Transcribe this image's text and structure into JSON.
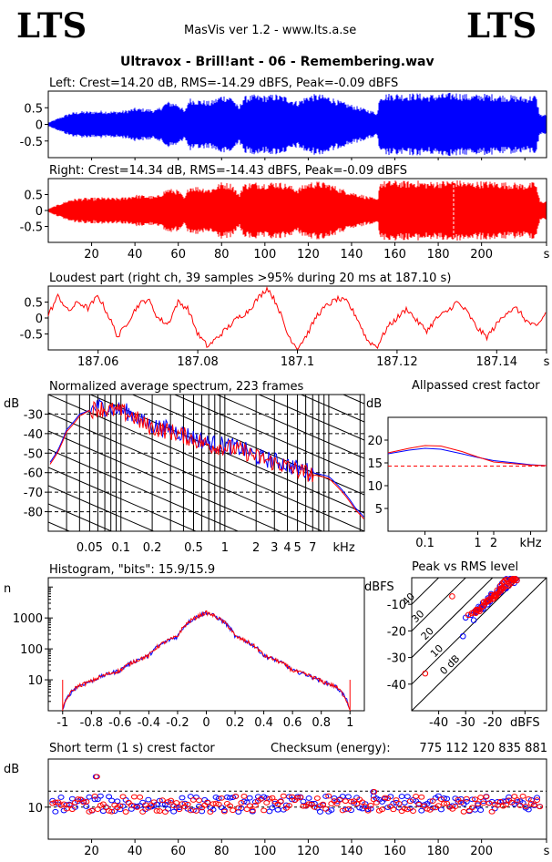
{
  "header": {
    "logo_left": "LTS",
    "logo_right": "LTS",
    "app_title": "MasVis ver 1.2 - www.lts.a.se",
    "file_title": "Ultravox - Brill!ant - 06 - Remembering.wav"
  },
  "colors": {
    "left": "#0000ff",
    "right": "#ff0000",
    "grid": "#000000"
  },
  "chart_data": [
    {
      "type": "area",
      "id": "left_waveform",
      "title": "Left: Crest=14.20 dB, RMS=-14.29 dBFS, Peak=-0.09 dBFS",
      "color": "#0000ff",
      "yticks": [
        "0.5",
        "0",
        "-0.5"
      ],
      "ytick_values": [
        0.5,
        0,
        -0.5
      ],
      "ylim": [
        -1,
        1
      ],
      "xlim": [
        0,
        230
      ],
      "envelope_t": [
        0,
        5,
        10,
        15,
        20,
        25,
        30,
        35,
        40,
        45,
        50,
        55,
        60,
        63,
        65,
        70,
        75,
        80,
        85,
        88,
        90,
        95,
        100,
        105,
        110,
        115,
        120,
        125,
        130,
        135,
        140,
        145,
        150,
        152,
        153,
        160,
        165,
        170,
        175,
        180,
        185,
        187,
        190,
        195,
        200,
        205,
        210,
        215,
        220,
        225,
        227
      ],
      "envelope_a": [
        0.05,
        0.2,
        0.35,
        0.4,
        0.4,
        0.42,
        0.4,
        0.42,
        0.5,
        0.48,
        0.45,
        0.7,
        0.65,
        0.4,
        0.8,
        0.75,
        0.7,
        0.9,
        0.85,
        0.5,
        0.85,
        0.9,
        0.88,
        0.92,
        0.85,
        0.7,
        0.9,
        0.92,
        0.85,
        0.7,
        0.6,
        0.5,
        0.4,
        0.35,
        0.92,
        0.95,
        0.93,
        0.95,
        0.9,
        0.93,
        0.95,
        0.98,
        0.95,
        0.9,
        0.93,
        0.92,
        0.9,
        0.88,
        0.85,
        0.9,
        0.3
      ]
    },
    {
      "type": "area",
      "id": "right_waveform",
      "title": "Right: Crest=14.34 dB, RMS=-14.43 dBFS, Peak=-0.09 dBFS",
      "color": "#ff0000",
      "yticks": [
        "0.5",
        "0",
        "-0.5"
      ],
      "ytick_values": [
        0.5,
        0,
        -0.5
      ],
      "ylim": [
        -1,
        1
      ],
      "xlim": [
        0,
        230
      ],
      "xticks": [
        "20",
        "40",
        "60",
        "80",
        "100",
        "120",
        "140",
        "160",
        "180",
        "200",
        "s"
      ],
      "xtick_values": [
        20,
        40,
        60,
        80,
        100,
        120,
        140,
        160,
        180,
        200,
        230
      ],
      "envelope_t": [
        0,
        5,
        10,
        15,
        20,
        25,
        30,
        35,
        40,
        45,
        50,
        55,
        60,
        63,
        65,
        70,
        75,
        80,
        85,
        88,
        90,
        95,
        100,
        105,
        110,
        115,
        120,
        125,
        130,
        135,
        140,
        145,
        150,
        152,
        153,
        160,
        165,
        170,
        175,
        180,
        185,
        187,
        190,
        195,
        200,
        205,
        210,
        215,
        220,
        225,
        227
      ],
      "envelope_a": [
        0.05,
        0.2,
        0.35,
        0.4,
        0.4,
        0.42,
        0.4,
        0.42,
        0.5,
        0.48,
        0.45,
        0.7,
        0.65,
        0.4,
        0.8,
        0.75,
        0.7,
        0.9,
        0.85,
        0.5,
        0.85,
        0.9,
        0.88,
        0.92,
        0.85,
        0.7,
        0.9,
        0.92,
        0.85,
        0.7,
        0.6,
        0.5,
        0.4,
        0.35,
        0.92,
        0.95,
        0.93,
        0.95,
        0.9,
        0.93,
        0.95,
        0.98,
        0.95,
        0.9,
        0.93,
        0.92,
        0.9,
        0.88,
        0.85,
        0.9,
        0.3
      ],
      "marker_time": 187.1
    },
    {
      "type": "line",
      "id": "loudest_part",
      "title": "Loudest part (right ch, 39 samples >95% during 20 ms at 187.10 s)",
      "color": "#ff0000",
      "xlim": [
        187.05,
        187.15
      ],
      "ylim": [
        -1,
        1
      ],
      "yticks": [
        "0.5",
        "0",
        "-0.5"
      ],
      "ytick_values": [
        0.5,
        0,
        -0.5
      ],
      "xticks": [
        "187.06",
        "187.08",
        "187.1",
        "187.12",
        "187.14",
        "s"
      ],
      "xtick_values": [
        187.06,
        187.08,
        187.1,
        187.12,
        187.14,
        187.15
      ],
      "x": [
        187.05,
        187.052,
        187.054,
        187.056,
        187.058,
        187.06,
        187.062,
        187.064,
        187.066,
        187.068,
        187.07,
        187.072,
        187.074,
        187.076,
        187.078,
        187.08,
        187.082,
        187.084,
        187.086,
        187.088,
        187.09,
        187.092,
        187.094,
        187.096,
        187.098,
        187.1,
        187.102,
        187.104,
        187.106,
        187.108,
        187.11,
        187.112,
        187.114,
        187.116,
        187.118,
        187.12,
        187.122,
        187.124,
        187.126,
        187.128,
        187.13,
        187.132,
        187.134,
        187.136,
        187.138,
        187.14,
        187.142,
        187.144,
        187.146,
        187.148,
        187.15
      ],
      "y": [
        0.1,
        0.7,
        0.2,
        0.5,
        0.3,
        0.7,
        0.1,
        -0.6,
        -0.1,
        0.4,
        0.6,
        0.0,
        -0.2,
        0.5,
        0.3,
        -0.5,
        -0.9,
        -0.6,
        -0.3,
        0.0,
        0.2,
        0.6,
        0.95,
        0.4,
        -0.5,
        -0.95,
        -0.5,
        0.1,
        0.4,
        0.6,
        0.5,
        0.0,
        -0.7,
        -0.9,
        -0.3,
        0.0,
        0.3,
        -0.1,
        -0.4,
        0.0,
        0.2,
        0.5,
        0.2,
        -0.3,
        -0.6,
        -0.2,
        0.2,
        0.3,
        -0.1,
        -0.3,
        0.2
      ]
    },
    {
      "type": "line",
      "id": "avg_spectrum",
      "title": "Normalized average spectrum, 223 frames",
      "ylabel": "dB",
      "xlabel": "kHz",
      "xscale": "log",
      "xlim": [
        0.02,
        22
      ],
      "ylim": [
        -90,
        -20
      ],
      "yticks": [
        "-30",
        "-40",
        "-50",
        "-60",
        "-70",
        "-80"
      ],
      "ytick_values": [
        -30,
        -40,
        -50,
        -60,
        -70,
        -80
      ],
      "xticks": [
        "0.05",
        "0.1",
        "0.2",
        "0.5",
        "1",
        "2",
        "3",
        "4",
        "5",
        "7",
        "kHz"
      ],
      "xtick_values": [
        0.05,
        0.1,
        0.2,
        0.5,
        1,
        2,
        3,
        4,
        5,
        7,
        14
      ],
      "series": [
        {
          "color": "#0000ff",
          "x": [
            0.02,
            0.025,
            0.03,
            0.04,
            0.05,
            0.06,
            0.08,
            0.1,
            0.13,
            0.16,
            0.2,
            0.3,
            0.4,
            0.5,
            0.7,
            1,
            1.5,
            2,
            3,
            4,
            5,
            7,
            10,
            14,
            18,
            22
          ],
          "y": [
            -56,
            -48,
            -38,
            -30,
            -28,
            -26,
            -27,
            -28,
            -30,
            -34,
            -36,
            -38,
            -40,
            -42,
            -45,
            -46,
            -48,
            -52,
            -54,
            -56,
            -58,
            -60,
            -62,
            -70,
            -78,
            -83
          ]
        },
        {
          "color": "#ff0000",
          "x": [
            0.02,
            0.025,
            0.03,
            0.04,
            0.05,
            0.06,
            0.08,
            0.1,
            0.13,
            0.16,
            0.2,
            0.3,
            0.4,
            0.5,
            0.7,
            1,
            1.5,
            2,
            3,
            4,
            5,
            7,
            10,
            14,
            18,
            22
          ],
          "y": [
            -57,
            -49,
            -39,
            -31,
            -28,
            -27,
            -28,
            -29,
            -31,
            -35,
            -37,
            -39,
            -41,
            -43,
            -46,
            -47,
            -49,
            -52,
            -55,
            -57,
            -59,
            -61,
            -63,
            -71,
            -79,
            -84
          ]
        }
      ]
    },
    {
      "type": "line",
      "id": "allpassed_crest",
      "title": "Allpassed crest factor",
      "ylabel": "dB",
      "xlabel": "kHz",
      "xscale": "log",
      "xlim": [
        0.02,
        20
      ],
      "ylim": [
        0,
        25
      ],
      "yticks": [
        "20",
        "15",
        "10",
        "5"
      ],
      "ytick_values": [
        20,
        15,
        10,
        5
      ],
      "xticks": [
        "0.1",
        "1",
        "2",
        "kHz"
      ],
      "xtick_values": [
        0.1,
        1,
        2,
        10
      ],
      "reference_line": 14.3,
      "series": [
        {
          "color": "#0000ff",
          "x": [
            0.02,
            0.05,
            0.1,
            0.2,
            0.5,
            1,
            2,
            5,
            10,
            20
          ],
          "y": [
            17.0,
            17.8,
            18.2,
            18.0,
            17.0,
            16.2,
            15.5,
            15.0,
            14.6,
            14.4
          ]
        },
        {
          "color": "#ff0000",
          "x": [
            0.02,
            0.05,
            0.1,
            0.2,
            0.5,
            1,
            2,
            5,
            10,
            20
          ],
          "y": [
            17.2,
            18.2,
            18.8,
            18.7,
            17.5,
            16.3,
            15.2,
            14.8,
            14.5,
            14.4
          ]
        }
      ]
    },
    {
      "type": "line",
      "id": "histogram",
      "title": "Histogram, \"bits\": 15.9/15.9",
      "ylabel": "n",
      "yscale": "log",
      "xlim": [
        -1.1,
        1.1
      ],
      "ylim": [
        1,
        20000
      ],
      "yticks": [
        "1000",
        "100",
        "10"
      ],
      "ytick_values": [
        1000,
        100,
        10
      ],
      "xticks": [
        "-1",
        "-0.8",
        "-0.6",
        "-0.4",
        "-0.2",
        "0",
        "0.2",
        "0.4",
        "0.6",
        "0.8",
        "1"
      ],
      "xtick_values": [
        -1,
        -0.8,
        -0.6,
        -0.4,
        -0.2,
        0,
        0.2,
        0.4,
        0.6,
        0.8,
        1
      ],
      "x": [
        -1,
        -0.9,
        -0.8,
        -0.6,
        -0.4,
        -0.2,
        0,
        0.2,
        0.4,
        0.6,
        0.8,
        0.9,
        1
      ],
      "y": [
        1,
        6,
        9,
        20,
        60,
        250,
        1500,
        250,
        60,
        20,
        9,
        6,
        1
      ]
    },
    {
      "type": "scatter",
      "id": "peak_vs_rms",
      "title": "Peak vs RMS level",
      "ylabel": "dBFS",
      "xlabel": "dBFS",
      "xlim": [
        -50,
        0
      ],
      "ylim": [
        -50,
        0
      ],
      "yticks": [
        "-10",
        "-20",
        "-30",
        "-40"
      ],
      "ytick_values": [
        -10,
        -20,
        -30,
        -40
      ],
      "xticks": [
        "-40",
        "-30",
        "-20",
        "dBFS"
      ],
      "xtick_values": [
        -40,
        -30,
        -20,
        -8
      ],
      "diagonals": [
        "0 dB",
        "10",
        "20",
        "30",
        "40"
      ],
      "diagonal_values": [
        0,
        10,
        20,
        30,
        40
      ],
      "series": [
        {
          "color": "#0000ff",
          "x": [
            -30,
            -28,
            -26,
            -25,
            -24,
            -23,
            -22,
            -21,
            -20,
            -19,
            -18,
            -17,
            -16,
            -15,
            -14,
            -13,
            -12,
            -11,
            -31,
            -27
          ],
          "y": [
            -15,
            -14,
            -13,
            -12,
            -11,
            -10,
            -9,
            -9,
            -8,
            -7,
            -6,
            -5,
            -4,
            -4,
            -3,
            -2,
            -2,
            -1,
            -22,
            -16
          ]
        },
        {
          "color": "#ff0000",
          "x": [
            -29,
            -27,
            -26,
            -24,
            -23,
            -22,
            -21,
            -20,
            -19,
            -18,
            -17,
            -16,
            -15,
            -14,
            -13,
            -12,
            -11,
            -35,
            -45,
            -25
          ],
          "y": [
            -14,
            -13,
            -12,
            -11,
            -10,
            -9,
            -8,
            -8,
            -7,
            -6,
            -5,
            -4,
            -3,
            -3,
            -2,
            -1,
            -1,
            -7,
            -36,
            -12
          ]
        }
      ]
    },
    {
      "type": "scatter",
      "id": "short_term_crest",
      "title": "Short term (1 s) crest factor",
      "ylabel": "dB",
      "xlim": [
        0,
        230
      ],
      "ylim": [
        0,
        25
      ],
      "yticks": [
        "10"
      ],
      "ytick_values": [
        10
      ],
      "xticks": [
        "20",
        "40",
        "60",
        "80",
        "100",
        "120",
        "140",
        "160",
        "180",
        "200",
        "s"
      ],
      "xtick_values": [
        20,
        40,
        60,
        80,
        100,
        120,
        140,
        160,
        180,
        200,
        230
      ],
      "ref_lines": [
        15,
        10
      ],
      "checksum_label": "Checksum (energy):",
      "checksum_value": "775 112 120 835 881",
      "outliers": [
        {
          "t": 22,
          "y": 19.5
        },
        {
          "t": 150,
          "y": 14.8
        }
      ]
    }
  ]
}
